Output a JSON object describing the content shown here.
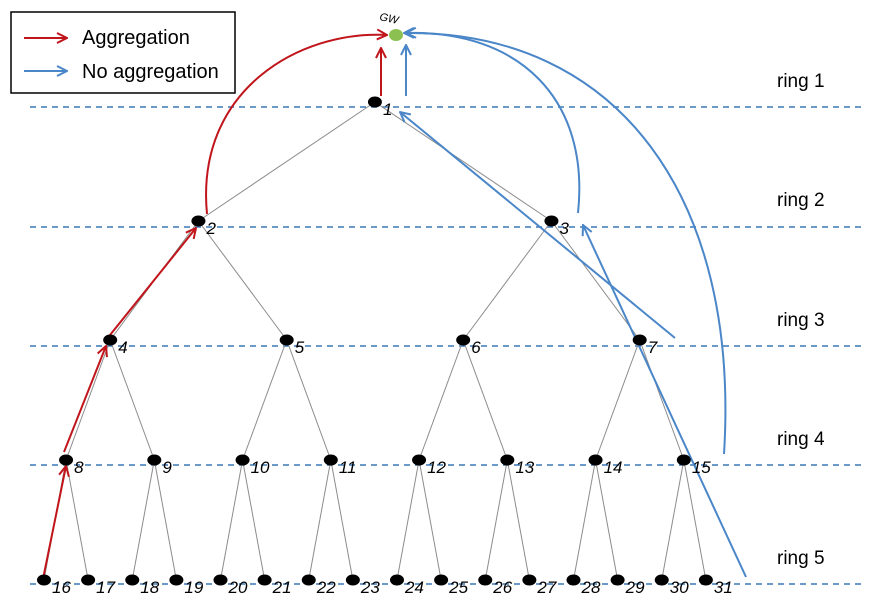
{
  "legend": {
    "aggregation_label": "Aggregation",
    "no_aggregation_label": "No aggregation",
    "aggregation_color": "#c0151b",
    "no_aggregation_color": "#4a86c8"
  },
  "gateway": {
    "label": "GW",
    "color": "#8cc152"
  },
  "rings": [
    {
      "label": "ring 1"
    },
    {
      "label": "ring 2"
    },
    {
      "label": "ring 3"
    },
    {
      "label": "ring 4"
    },
    {
      "label": "ring 5"
    }
  ],
  "nodes": [
    "1",
    "2",
    "3",
    "4",
    "5",
    "6",
    "7",
    "8",
    "9",
    "10",
    "11",
    "12",
    "13",
    "14",
    "15",
    "16",
    "17",
    "18",
    "19",
    "20",
    "21",
    "22",
    "23",
    "24",
    "25",
    "26",
    "27",
    "28",
    "29",
    "30",
    "31"
  ],
  "colors": {
    "node": "#000000",
    "ring_line": "#3b78b5",
    "edge": "#8c8c8c"
  }
}
